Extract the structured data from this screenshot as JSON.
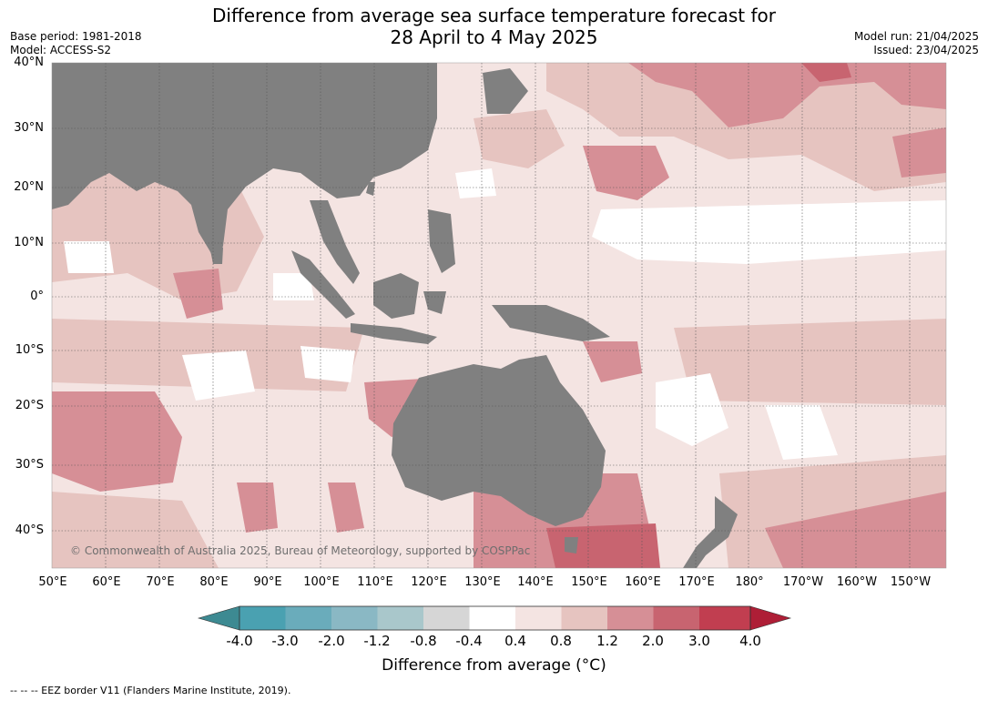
{
  "title_line1": "Difference from average sea surface temperature forecast for",
  "title_line2": "28 April to 4 May 2025",
  "base_period": "Base period: 1981-2018",
  "model": "Model: ACCESS-S2",
  "model_run": "Model run: 21/04/2025",
  "issued": "Issued: 23/04/2025",
  "latitude_labels": [
    "40°N",
    "30°N",
    "20°N",
    "10°N",
    "0°",
    "10°S",
    "20°S",
    "30°S",
    "40°S"
  ],
  "longitude_labels": [
    "50°E",
    "60°E",
    "70°E",
    "80°E",
    "90°E",
    "100°E",
    "110°E",
    "120°E",
    "130°E",
    "140°E",
    "150°E",
    "160°E",
    "170°E",
    "180°",
    "170°W",
    "160°W",
    "150°W"
  ],
  "colorbar": {
    "ticks": [
      "-4.0",
      "-3.0",
      "-2.0",
      "-1.2",
      "-0.8",
      "-0.4",
      "0.4",
      "0.8",
      "1.2",
      "2.0",
      "3.0",
      "4.0"
    ],
    "colors": [
      "#3d8a92",
      "#4aa1b1",
      "#6aacbb",
      "#8ab8c4",
      "#a9c7cb",
      "#d6d6d6",
      "#ffffff",
      "#f4e4e2",
      "#e6c4c0",
      "#d68f96",
      "#c86470",
      "#c13e50",
      "#ae1e36"
    ],
    "label": "Difference from average (°C)"
  },
  "map": {
    "land_color": "#808080",
    "grid_color": "#555555"
  },
  "copyright": "© Commonwealth of Australia 2025, Bureau of Meteorology, supported by COSPPac",
  "footnote": "--  --  -- EEZ border V11 (Flanders Marine Institute, 2019)."
}
